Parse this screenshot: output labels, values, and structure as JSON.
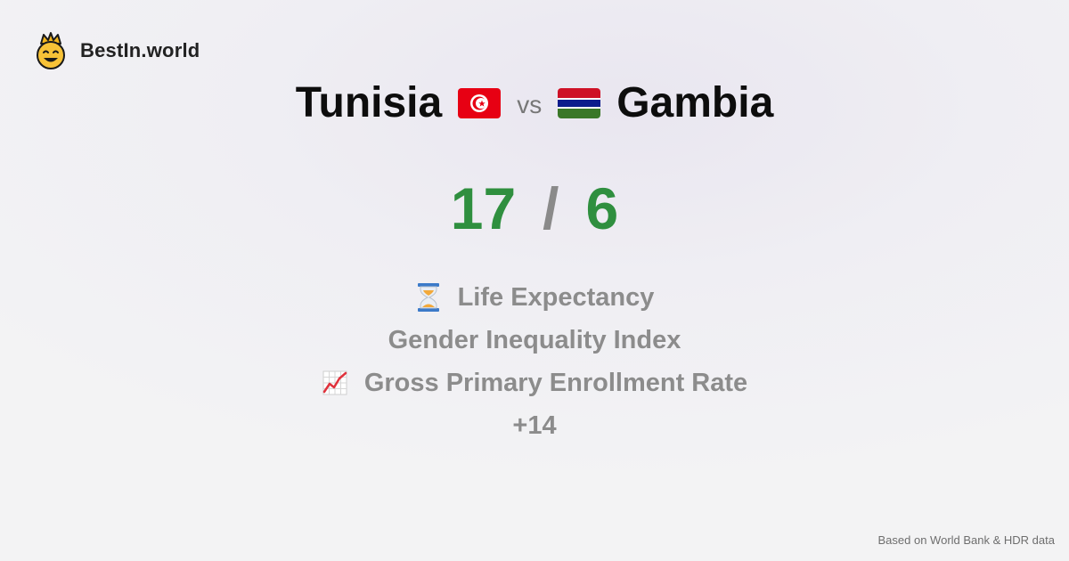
{
  "brand": {
    "name": "BestIn.world",
    "icon": "crowned-smiley-icon"
  },
  "comparison": {
    "left": {
      "country": "Tunisia",
      "flag": "tunisia-flag-icon"
    },
    "vs_label": "vs",
    "right": {
      "country": "Gambia",
      "flag": "gambia-flag-icon"
    }
  },
  "score": {
    "left": "17",
    "separator": "/",
    "right": "6"
  },
  "metrics": [
    {
      "label": "Life Expectancy",
      "icon": "hourglass-icon"
    },
    {
      "label": "Gender Inequality Index"
    },
    {
      "label": "Gross Primary Enrollment Rate",
      "icon": "chart-increasing-icon"
    },
    {
      "label": "+14"
    }
  ],
  "footer": {
    "source": "Based on World Bank & HDR data"
  },
  "colors": {
    "score": "#2f8f3f",
    "muted": "#8c8c8c"
  }
}
